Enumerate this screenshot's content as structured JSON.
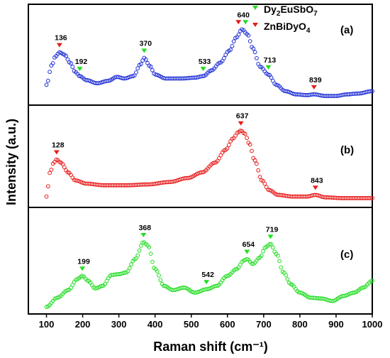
{
  "chart_data": {
    "type": "scatter",
    "ylabel": "Intensity (a.u.)",
    "xlabel": "Raman shift (cm⁻¹)",
    "xlim": [
      50,
      1000
    ],
    "xticks": [
      "100",
      "200",
      "300",
      "400",
      "500",
      "600",
      "700",
      "800",
      "900",
      "1000"
    ],
    "legend": {
      "position": "top-right",
      "entries": [
        {
          "label_main": "Dy",
          "label_sub1": "2",
          "label_mid": "EuSbO",
          "label_sub2": "7",
          "color": "#22dd22"
        },
        {
          "label_main": "ZnBiDyO",
          "label_sub1": "4",
          "label_mid": "",
          "label_sub2": "",
          "color": "#e81c1c"
        }
      ]
    },
    "panels": [
      {
        "label": "(a)",
        "color": "#1f2fd6",
        "ylim": [
          0,
          1.2
        ],
        "points": [
          [
            100,
            0.22
          ],
          [
            115,
            0.47
          ],
          [
            125,
            0.58
          ],
          [
            136,
            0.63
          ],
          [
            150,
            0.6
          ],
          [
            165,
            0.5
          ],
          [
            180,
            0.38
          ],
          [
            192,
            0.33
          ],
          [
            210,
            0.28
          ],
          [
            240,
            0.24
          ],
          [
            270,
            0.27
          ],
          [
            295,
            0.32
          ],
          [
            315,
            0.3
          ],
          [
            340,
            0.33
          ],
          [
            360,
            0.48
          ],
          [
            370,
            0.56
          ],
          [
            385,
            0.46
          ],
          [
            400,
            0.35
          ],
          [
            430,
            0.3
          ],
          [
            470,
            0.3
          ],
          [
            510,
            0.31
          ],
          [
            533,
            0.33
          ],
          [
            555,
            0.4
          ],
          [
            580,
            0.5
          ],
          [
            605,
            0.65
          ],
          [
            625,
            0.82
          ],
          [
            640,
            0.92
          ],
          [
            655,
            0.86
          ],
          [
            670,
            0.68
          ],
          [
            690,
            0.45
          ],
          [
            713,
            0.35
          ],
          [
            735,
            0.22
          ],
          [
            760,
            0.14
          ],
          [
            790,
            0.1
          ],
          [
            820,
            0.09
          ],
          [
            839,
            0.1
          ],
          [
            870,
            0.08
          ],
          [
            900,
            0.08
          ],
          [
            930,
            0.1
          ],
          [
            960,
            0.11
          ],
          [
            1000,
            0.14
          ]
        ],
        "markers": [
          {
            "x": 136,
            "label": "136",
            "type": "ZnBiDyO4",
            "y": 0.63
          },
          {
            "x": 192,
            "label": "192",
            "type": "Dy2EuSbO7",
            "y": 0.33
          },
          {
            "x": 370,
            "label": "370",
            "type": "Dy2EuSbO7",
            "y": 0.56
          },
          {
            "x": 533,
            "label": "533",
            "type": "Dy2EuSbO7",
            "y": 0.33
          },
          {
            "x": 640,
            "label": "640",
            "type": "both",
            "y": 0.92
          },
          {
            "x": 713,
            "label": "713",
            "type": "Dy2EuSbO7",
            "y": 0.35
          },
          {
            "x": 839,
            "label": "839",
            "type": "ZnBiDyO4",
            "y": 0.1
          }
        ]
      },
      {
        "label": "(b)",
        "color": "#e81c1c",
        "ylim": [
          0,
          1.2
        ],
        "points": [
          [
            100,
            0.1
          ],
          [
            110,
            0.4
          ],
          [
            120,
            0.52
          ],
          [
            128,
            0.56
          ],
          [
            140,
            0.52
          ],
          [
            160,
            0.4
          ],
          [
            180,
            0.3
          ],
          [
            210,
            0.26
          ],
          [
            260,
            0.24
          ],
          [
            320,
            0.24
          ],
          [
            380,
            0.25
          ],
          [
            440,
            0.28
          ],
          [
            490,
            0.33
          ],
          [
            530,
            0.4
          ],
          [
            565,
            0.52
          ],
          [
            595,
            0.68
          ],
          [
            615,
            0.82
          ],
          [
            630,
            0.9
          ],
          [
            637,
            0.92
          ],
          [
            648,
            0.88
          ],
          [
            660,
            0.76
          ],
          [
            675,
            0.55
          ],
          [
            695,
            0.3
          ],
          [
            715,
            0.18
          ],
          [
            740,
            0.12
          ],
          [
            780,
            0.1
          ],
          [
            820,
            0.1
          ],
          [
            843,
            0.12
          ],
          [
            870,
            0.09
          ],
          [
            920,
            0.08
          ],
          [
            1000,
            0.08
          ]
        ],
        "markers": [
          {
            "x": 128,
            "label": "128",
            "type": "ZnBiDyO4",
            "y": 0.56
          },
          {
            "x": 637,
            "label": "637",
            "type": "ZnBiDyO4",
            "y": 0.92
          },
          {
            "x": 843,
            "label": "843",
            "type": "ZnBiDyO4",
            "y": 0.12
          }
        ]
      },
      {
        "label": "(c)",
        "color": "#22dd22",
        "ylim": [
          0,
          1.2
        ],
        "points": [
          [
            100,
            0.05
          ],
          [
            130,
            0.16
          ],
          [
            160,
            0.25
          ],
          [
            185,
            0.38
          ],
          [
            199,
            0.42
          ],
          [
            215,
            0.36
          ],
          [
            235,
            0.27
          ],
          [
            255,
            0.3
          ],
          [
            280,
            0.43
          ],
          [
            300,
            0.44
          ],
          [
            320,
            0.46
          ],
          [
            345,
            0.62
          ],
          [
            368,
            0.82
          ],
          [
            380,
            0.78
          ],
          [
            400,
            0.5
          ],
          [
            425,
            0.3
          ],
          [
            450,
            0.25
          ],
          [
            480,
            0.28
          ],
          [
            510,
            0.22
          ],
          [
            542,
            0.26
          ],
          [
            570,
            0.3
          ],
          [
            600,
            0.42
          ],
          [
            625,
            0.5
          ],
          [
            645,
            0.6
          ],
          [
            654,
            0.62
          ],
          [
            670,
            0.56
          ],
          [
            690,
            0.64
          ],
          [
            705,
            0.76
          ],
          [
            719,
            0.8
          ],
          [
            735,
            0.68
          ],
          [
            755,
            0.46
          ],
          [
            775,
            0.32
          ],
          [
            800,
            0.22
          ],
          [
            830,
            0.16
          ],
          [
            860,
            0.15
          ],
          [
            890,
            0.12
          ],
          [
            920,
            0.18
          ],
          [
            950,
            0.22
          ],
          [
            975,
            0.28
          ],
          [
            1000,
            0.36
          ]
        ],
        "markers": [
          {
            "x": 199,
            "label": "199",
            "type": "Dy2EuSbO7",
            "y": 0.42
          },
          {
            "x": 368,
            "label": "368",
            "type": "Dy2EuSbO7",
            "y": 0.82
          },
          {
            "x": 542,
            "label": "542",
            "type": "Dy2EuSbO7",
            "y": 0.26
          },
          {
            "x": 654,
            "label": "654",
            "type": "Dy2EuSbO7",
            "y": 0.62
          },
          {
            "x": 719,
            "label": "719",
            "type": "Dy2EuSbO7",
            "y": 0.8
          }
        ]
      }
    ]
  }
}
